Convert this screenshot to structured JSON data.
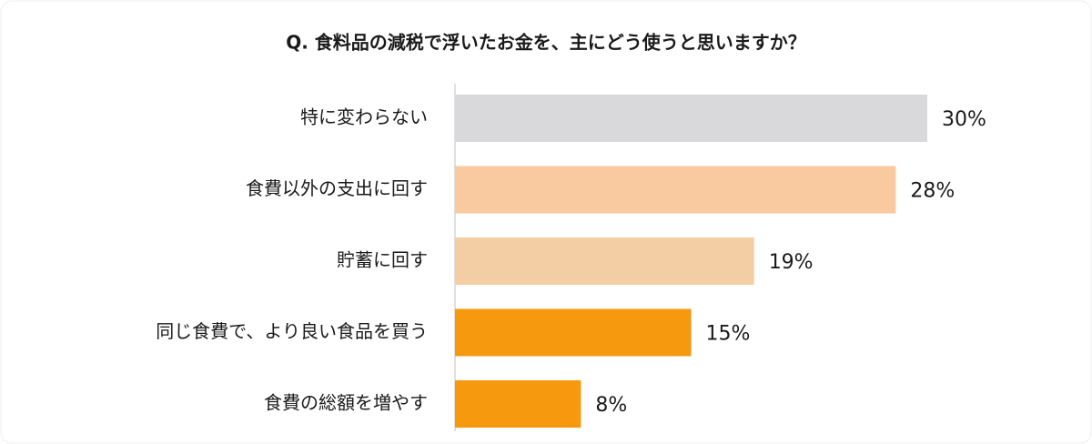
{
  "chart_data": {
    "type": "bar",
    "orientation": "horizontal",
    "title": "Q. 食料品の減税で浮いたお金を、主にどう使うと思いますか？",
    "categories": [
      "特に変わらない",
      "食費以外の支出に回す",
      "貯蓄に回す",
      "同じ食費で、より良い食品を買う",
      "食費の総額を増やす"
    ],
    "values": [
      30,
      28,
      19,
      15,
      8
    ],
    "value_labels": [
      "30%",
      "28%",
      "19%",
      "15%",
      "8%"
    ],
    "colors": [
      "#d9d8db",
      "#f9caa0",
      "#f3cda4",
      "#f7990f",
      "#f7990f"
    ]
  }
}
